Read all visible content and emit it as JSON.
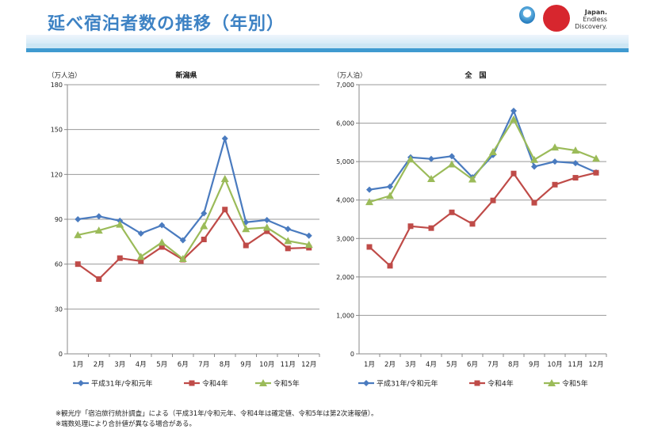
{
  "header": {
    "title": "延べ宿泊者数の推移（年別）",
    "logo_text": [
      "Japan.",
      "Endless",
      "Discovery."
    ]
  },
  "colors": {
    "series1": "#4a7bbf",
    "series2": "#bf4b48",
    "series3": "#9bbb59",
    "title": "#3d82c4"
  },
  "chart_data": [
    {
      "type": "line",
      "title": "新潟県",
      "ylabel": "（万人泊）",
      "categories": [
        "1月",
        "2月",
        "3月",
        "4月",
        "5月",
        "6月",
        "7月",
        "8月",
        "9月",
        "10月",
        "11月",
        "12月"
      ],
      "ylim": [
        0,
        180
      ],
      "yticks": [
        0,
        30,
        60,
        90,
        120,
        150,
        180
      ],
      "ytick_labels": [
        "0",
        "30",
        "60",
        "90",
        "120",
        "150",
        "180"
      ],
      "grid": true,
      "legend_position": "bottom",
      "series": [
        {
          "name": "平成31年/令和元年",
          "marker": "diamond",
          "values": [
            90,
            92,
            89,
            80.5,
            86,
            76,
            94,
            144,
            88,
            89.5,
            83.5,
            79
          ]
        },
        {
          "name": "令和4年",
          "marker": "square",
          "values": [
            60,
            50,
            64,
            62,
            71.5,
            63,
            76.5,
            96.5,
            72.5,
            82,
            70.5,
            71
          ]
        },
        {
          "name": "令和5年",
          "marker": "triangle",
          "values": [
            79.5,
            82.5,
            86.5,
            65,
            74.5,
            63.5,
            85.5,
            117,
            83.5,
            84.5,
            75.5,
            73
          ]
        }
      ]
    },
    {
      "type": "line",
      "title": "全　国",
      "ylabel": "（万人泊）",
      "categories": [
        "1月",
        "2月",
        "3月",
        "4月",
        "5月",
        "6月",
        "7月",
        "8月",
        "9月",
        "10月",
        "11月",
        "12月"
      ],
      "ylim": [
        0,
        7000
      ],
      "yticks": [
        0,
        1000,
        2000,
        3000,
        4000,
        5000,
        6000,
        7000
      ],
      "ytick_labels": [
        "0",
        "1,000",
        "2,000",
        "3,000",
        "4,000",
        "5,000",
        "6,000",
        "7,000"
      ],
      "grid": true,
      "legend_position": "bottom",
      "series": [
        {
          "name": "平成31年/令和元年",
          "marker": "diamond",
          "values": [
            4270,
            4350,
            5110,
            5070,
            5140,
            4590,
            5170,
            6320,
            4870,
            5000,
            4960,
            4720
          ]
        },
        {
          "name": "令和4年",
          "marker": "square",
          "values": [
            2780,
            2290,
            3320,
            3270,
            3680,
            3380,
            3990,
            4690,
            3930,
            4400,
            4580,
            4710
          ]
        },
        {
          "name": "令和5年",
          "marker": "triangle",
          "values": [
            3950,
            4110,
            5060,
            4550,
            4930,
            4540,
            5250,
            6100,
            5050,
            5370,
            5290,
            5080
          ]
        }
      ]
    }
  ],
  "footnotes": [
    "※観光庁「宿泊旅行統計調査」による（平成31年/令和元年、令和4年は確定値、令和5年は第2次速報値）。",
    "※端数処理により合計値が異なる場合がある。"
  ]
}
